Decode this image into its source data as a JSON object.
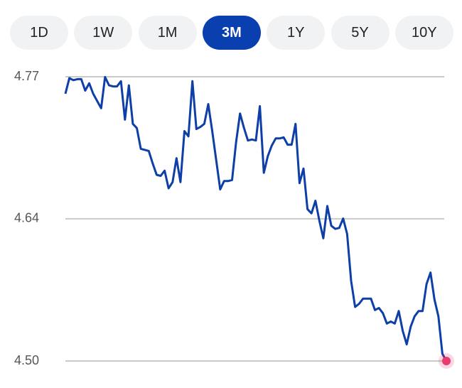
{
  "tabs": [
    "1D",
    "1W",
    "1M",
    "3M",
    "1Y",
    "5Y",
    "10Y"
  ],
  "selected_tab": "3M",
  "chart_data": {
    "type": "line",
    "series": [
      {
        "color": "#0d3fa6",
        "values": [
          4.757,
          4.772,
          4.77,
          4.771,
          4.771,
          4.76,
          4.767,
          4.757,
          4.75,
          4.743,
          4.773,
          4.765,
          4.764,
          4.764,
          4.769,
          4.732,
          4.765,
          4.728,
          4.724,
          4.704,
          4.703,
          4.702,
          4.69,
          4.679,
          4.678,
          4.683,
          4.666,
          4.672,
          4.695,
          4.672,
          4.721,
          4.716,
          4.769,
          4.723,
          4.725,
          4.728,
          4.747,
          4.721,
          4.693,
          4.665,
          4.673,
          4.673,
          4.674,
          4.71,
          4.738,
          4.724,
          4.712,
          4.713,
          4.712,
          4.745,
          4.681,
          4.697,
          4.707,
          4.714,
          4.714,
          4.715,
          4.708,
          4.708,
          4.728,
          4.671,
          4.685,
          4.646,
          4.642,
          4.654,
          4.635,
          4.618,
          4.649,
          4.63,
          4.627,
          4.628,
          4.637,
          4.622,
          4.577,
          4.552,
          4.555,
          4.56,
          4.56,
          4.56,
          4.549,
          4.551,
          4.546,
          4.536,
          4.538,
          4.536,
          4.548,
          4.529,
          4.516,
          4.533,
          4.543,
          4.548,
          4.548,
          4.574,
          4.585,
          4.559,
          4.543,
          4.507,
          4.5
        ]
      }
    ],
    "ylim": [
      4.5,
      4.7733
    ],
    "yticks": [
      {
        "value": 4.7733,
        "label": "4.77"
      },
      {
        "value": 4.6367,
        "label": "4.64"
      },
      {
        "value": 4.5,
        "label": "4.50"
      }
    ],
    "grid": true,
    "end_marker_color": "#ea3a6e"
  }
}
